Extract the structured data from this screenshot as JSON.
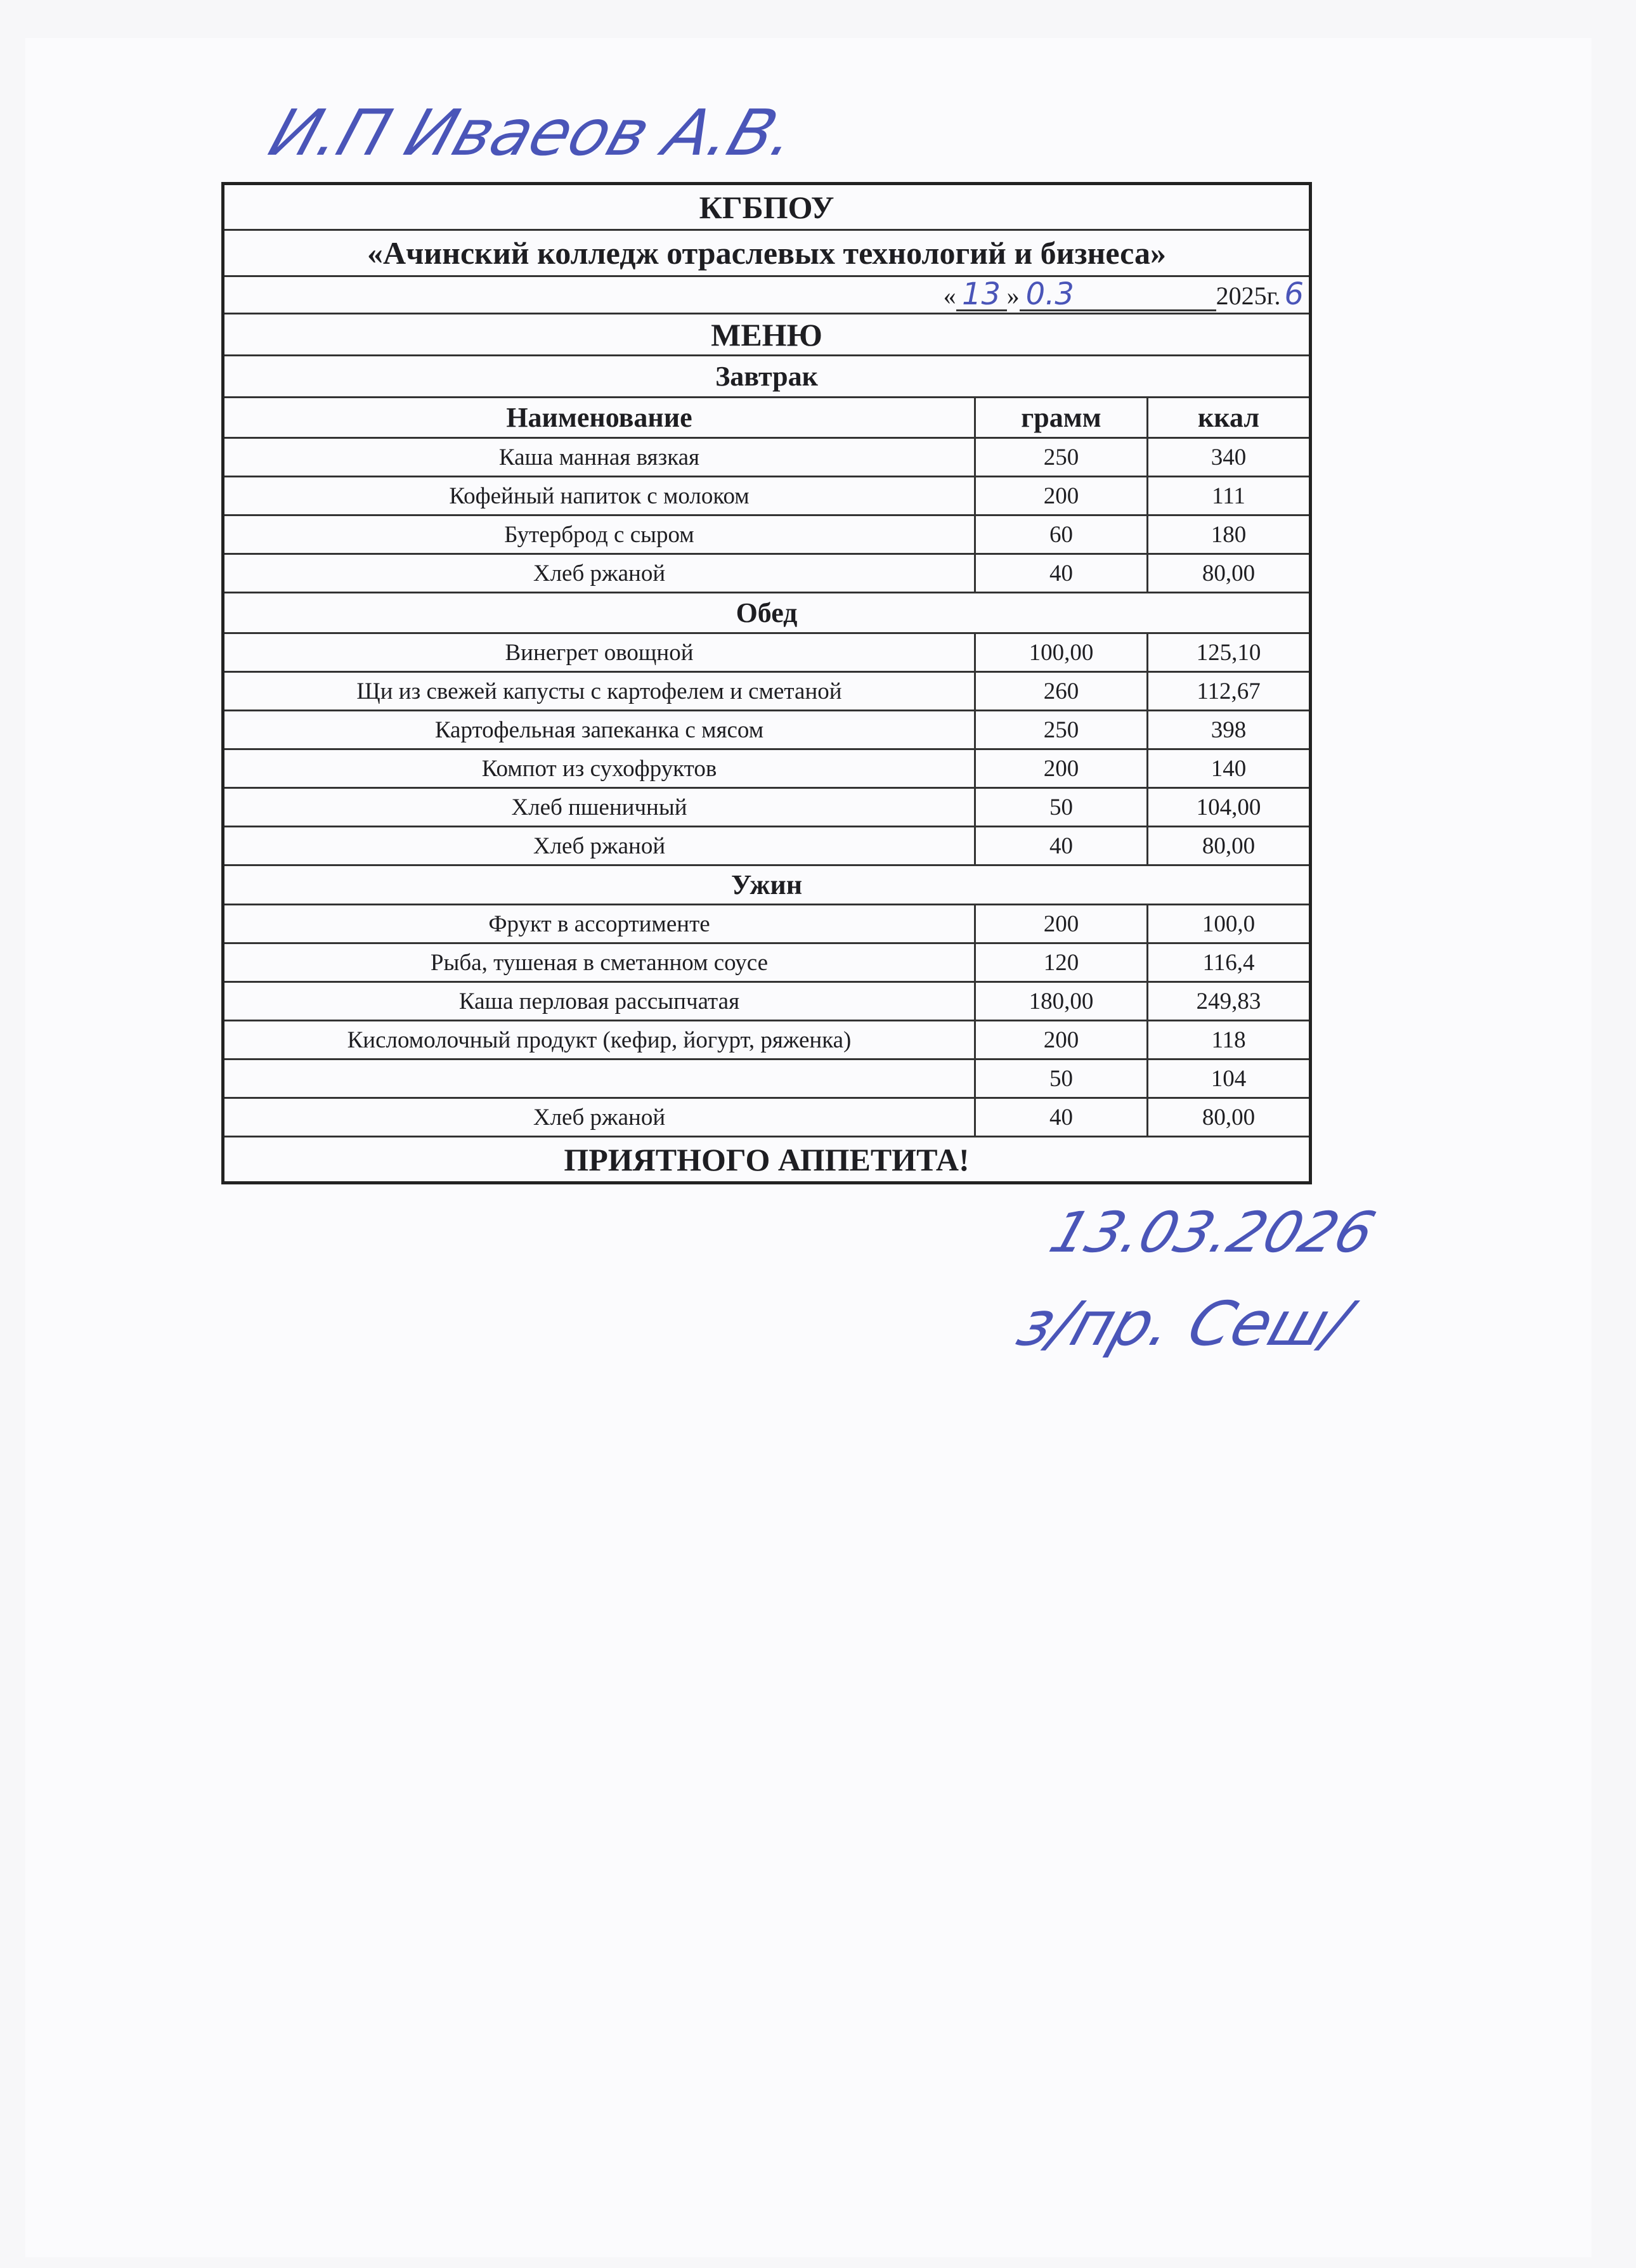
{
  "handwritten": {
    "top_note": "И.П Иваеов А.В.",
    "date_day": "13",
    "date_month": "0.3",
    "date_year_correction": "6",
    "bottom_date": "13.03.2026",
    "bottom_signature": "з/пр. Сеш/"
  },
  "header": {
    "org": "КГБПОУ",
    "college": "«Ачинский колледж отраслевых технологий и бизнеса»",
    "date_open": "«",
    "date_close": "»",
    "date_year": "2025г.",
    "title": "МЕНЮ"
  },
  "columns": {
    "name": "Наименование",
    "grams": "грамм",
    "kcal": "ккал"
  },
  "sections": [
    {
      "title": "Завтрак",
      "items": [
        {
          "name": "Каша манная вязкая",
          "grams": "250",
          "kcal": "340"
        },
        {
          "name": "Кофейный напиток с молоком",
          "grams": "200",
          "kcal": "111"
        },
        {
          "name": "Бутерброд с сыром",
          "grams": "60",
          "kcal": "180"
        },
        {
          "name": "Хлеб ржаной",
          "grams": "40",
          "kcal": "80,00"
        }
      ]
    },
    {
      "title": "Обед",
      "items": [
        {
          "name": "Винегрет овощной",
          "grams": "100,00",
          "kcal": "125,10"
        },
        {
          "name": "Щи из свежей капусты с картофелем и сметаной",
          "grams": "260",
          "kcal": "112,67"
        },
        {
          "name": "Картофельная запеканка с мясом",
          "grams": "250",
          "kcal": "398"
        },
        {
          "name": "Компот из сухофруктов",
          "grams": "200",
          "kcal": "140"
        },
        {
          "name": "Хлеб пшеничный",
          "grams": "50",
          "kcal": "104,00"
        },
        {
          "name": "Хлеб ржаной",
          "grams": "40",
          "kcal": "80,00"
        }
      ]
    },
    {
      "title": "Ужин",
      "items": [
        {
          "name": "Фрукт в ассортименте",
          "grams": "200",
          "kcal": "100,0"
        },
        {
          "name": "Рыба, тушеная в сметанном соусе",
          "grams": "120",
          "kcal": "116,4"
        },
        {
          "name": "Каша перловая рассыпчатая",
          "grams": "180,00",
          "kcal": "249,83"
        },
        {
          "name": "Кисломолочный продукт (кефир, йогурт, ряженка)",
          "grams": "200",
          "kcal": "118"
        },
        {
          "name": "",
          "grams": "50",
          "kcal": "104"
        },
        {
          "name": "Хлеб ржаной",
          "grams": "40",
          "kcal": "80,00"
        }
      ]
    }
  ],
  "footer": "ПРИЯТНОГО АППЕТИТА!"
}
